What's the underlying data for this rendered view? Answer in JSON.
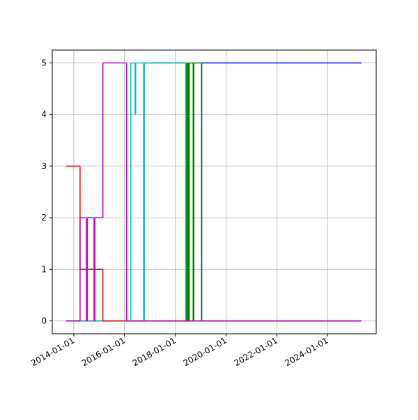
{
  "chart_data": {
    "type": "step",
    "xlim": [
      "2013-02-25",
      "2025-12-01"
    ],
    "ylim": [
      -0.25,
      5.25
    ],
    "xticks": [
      "2014-01-01",
      "2016-01-01",
      "2018-01-01",
      "2020-01-01",
      "2022-01-01",
      "2024-01-01"
    ],
    "yticks": [
      0,
      1,
      2,
      3,
      4,
      5
    ],
    "grid": true,
    "series": [
      {
        "color": "#0000ff",
        "x": [
          "2013-09-12",
          "2019-01-15",
          "2025-04-27"
        ],
        "values": [
          0,
          5,
          5
        ]
      },
      {
        "color": "#008000",
        "x": [
          "2013-09-12",
          "2016-10-10",
          "2018-06-01",
          "2018-06-10",
          "2018-06-20",
          "2018-07-01",
          "2018-07-10",
          "2018-07-20",
          "2018-09-15",
          "2018-09-25",
          "2019-01-15",
          "2025-04-27"
        ],
        "values": [
          0,
          5,
          0,
          5,
          0,
          5,
          0,
          5,
          0,
          5,
          0,
          0
        ]
      },
      {
        "color": "#00bfbf",
        "x": [
          "2013-09-12",
          "2016-04-01",
          "2016-06-01",
          "2016-06-10",
          "2016-10-01",
          "2016-10-10",
          "2018-06-01",
          "2025-04-27"
        ],
        "values": [
          0,
          5,
          4,
          5,
          0,
          5,
          0,
          0
        ]
      },
      {
        "color": "#ff0000",
        "x": [
          "2013-09-12",
          "2014-04-01",
          "2015-02-24",
          "2025-04-27"
        ],
        "values": [
          3,
          1,
          0,
          0
        ]
      },
      {
        "color": "#bf00bf",
        "x": [
          "2013-09-12",
          "2014-04-01",
          "2014-07-01",
          "2014-07-15",
          "2014-10-20",
          "2014-11-01",
          "2015-02-24",
          "2016-01-31",
          "2025-04-27"
        ],
        "values": [
          0,
          2,
          0,
          2,
          0,
          2,
          5,
          0,
          0
        ]
      }
    ]
  }
}
